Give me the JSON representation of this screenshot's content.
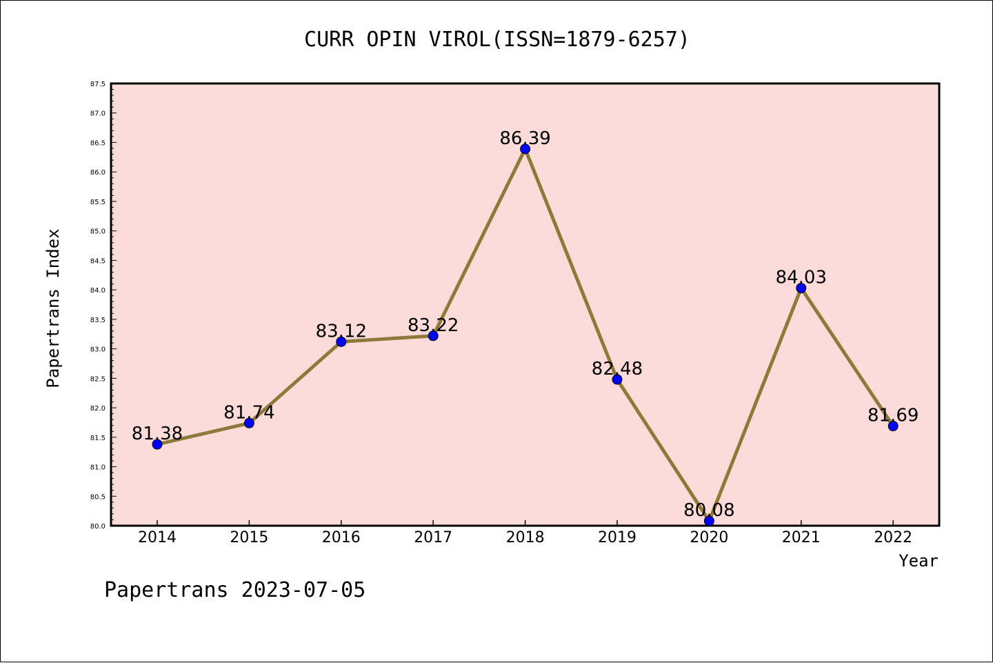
{
  "page": {
    "title": "CURR OPIN VIROL(ISSN=1879-6257)",
    "footer": "Papertrans 2023-07-05"
  },
  "chart_data": {
    "type": "line",
    "title": "CURR OPIN VIROL(ISSN=1879-6257)",
    "xlabel": "Year",
    "ylabel": "Papertrans Index",
    "categories": [
      "2014",
      "2015",
      "2016",
      "2017",
      "2018",
      "2019",
      "2020",
      "2021",
      "2022"
    ],
    "series": [
      {
        "values": [
          81.38,
          81.74,
          83.12,
          83.22,
          86.39,
          82.48,
          80.08,
          84.03,
          81.69
        ],
        "data_labels": [
          "81.38",
          "81.74",
          "83.12",
          "83.22",
          "86.39",
          "82.48",
          "80.08",
          "84.03",
          "81.69"
        ]
      }
    ],
    "ylim": [
      80.0,
      87.5
    ],
    "yticks": [
      "80.0",
      "80.5",
      "81.0",
      "81.5",
      "82.0",
      "82.5",
      "83.0",
      "83.5",
      "84.0",
      "84.5",
      "85.0",
      "85.5",
      "86.0",
      "86.5",
      "87.0",
      "87.5"
    ],
    "grid": false,
    "legend": "none",
    "colors": {
      "plot_background": "#fddbd8",
      "line": "#8b7a3a",
      "marker": "#0000ff",
      "axis": "#000000"
    }
  }
}
